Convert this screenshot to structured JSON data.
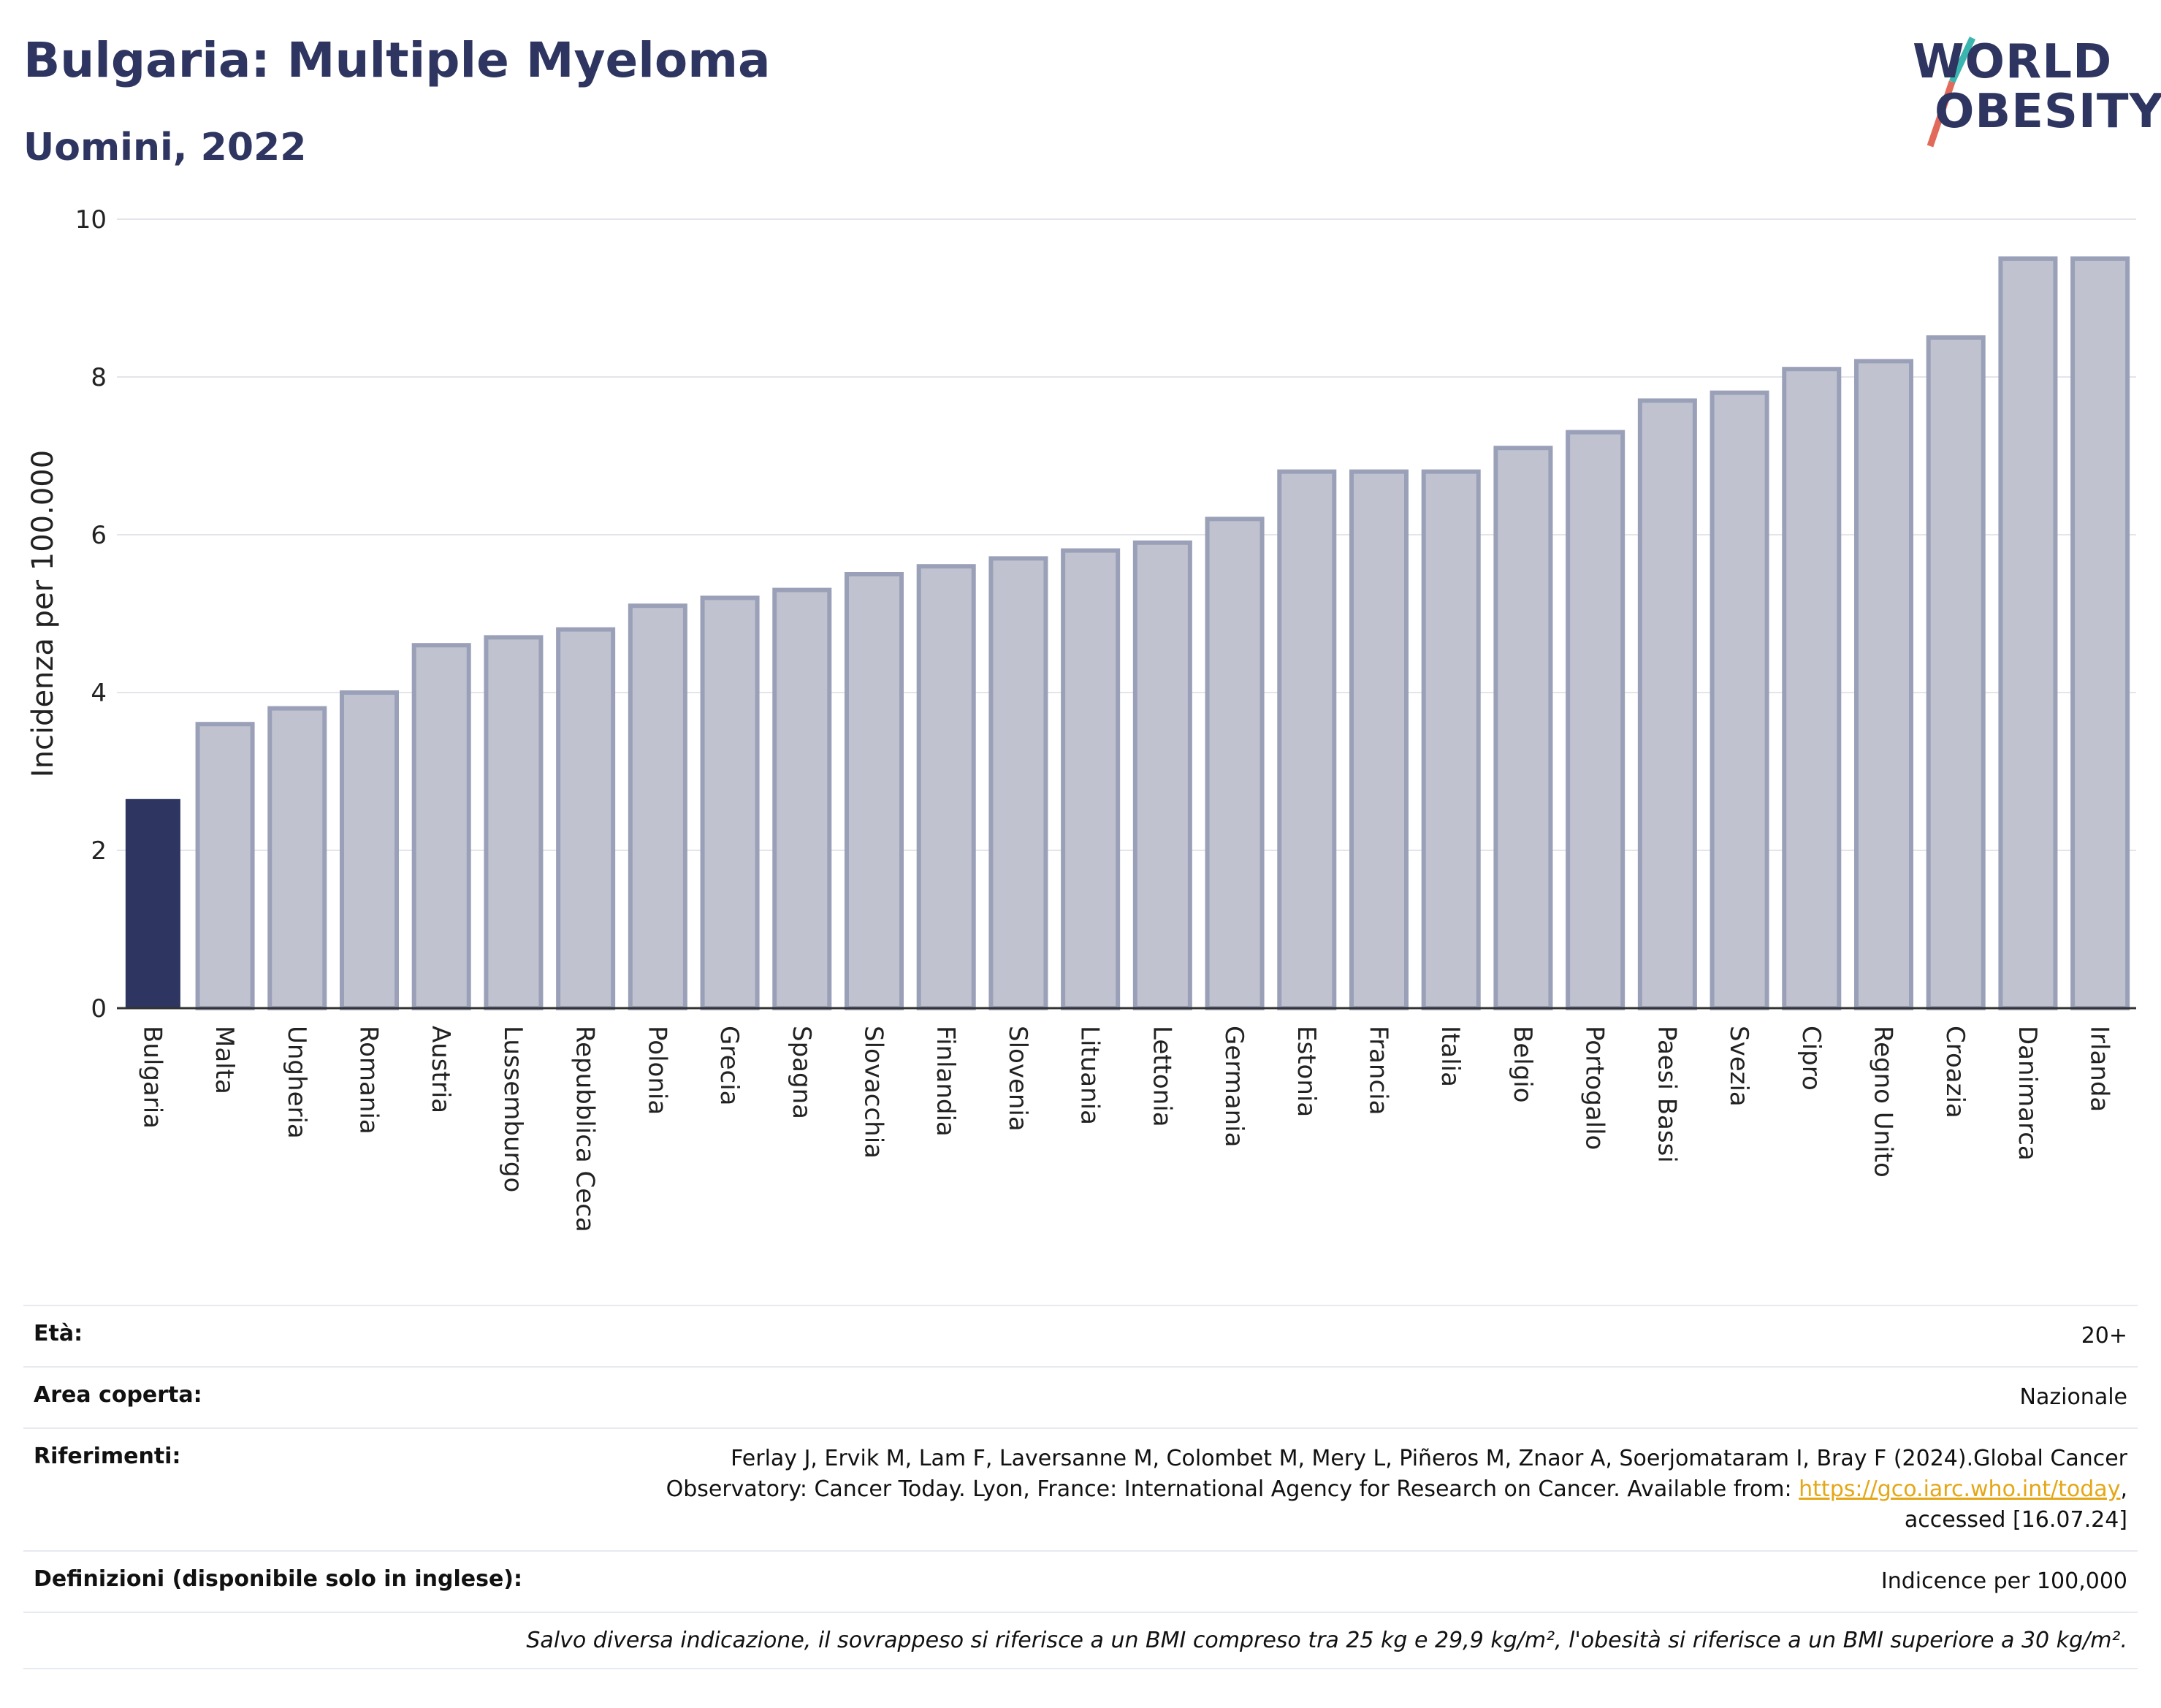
{
  "header": {
    "title": "Bulgaria: Multiple Myeloma",
    "subtitle": "Uomini, 2022"
  },
  "logo": {
    "line1": "WORLD",
    "line2": "OBESITY"
  },
  "colors": {
    "highlight": "#2d3560",
    "bar": "#c0c3cf",
    "bar_border": "#9aa0b8",
    "accent_teal": "#3ab5b0",
    "accent_red": "#e26a5a"
  },
  "chart_data": {
    "type": "bar",
    "ylabel": "Incidenza per 100.000",
    "ylim": [
      0,
      10
    ],
    "yticks": [
      0,
      2,
      4,
      6,
      8,
      10
    ],
    "grid": true,
    "highlight": "Bulgaria",
    "categories": [
      "Bulgaria",
      "Malta",
      "Ungheria",
      "Romania",
      "Austria",
      "Lussemburgo",
      "Repubblica Ceca",
      "Polonia",
      "Grecia",
      "Spagna",
      "Slovacchia",
      "Finlandia",
      "Slovenia",
      "Lituania",
      "Lettonia",
      "Germania",
      "Estonia",
      "Francia",
      "Italia",
      "Belgio",
      "Portogallo",
      "Paesi Bassi",
      "Svezia",
      "Cipro",
      "Regno Unito",
      "Croazia",
      "Danimarca",
      "Irlanda"
    ],
    "values": [
      2.65,
      3.6,
      3.8,
      4.0,
      4.6,
      4.7,
      4.8,
      5.1,
      5.2,
      5.3,
      5.5,
      5.6,
      5.7,
      5.8,
      5.9,
      6.2,
      6.8,
      6.8,
      6.8,
      7.1,
      7.3,
      7.7,
      7.8,
      8.1,
      8.2,
      8.5,
      9.5,
      9.5
    ]
  },
  "meta": {
    "age_label": "Età:",
    "age_value": "20+",
    "area_label": "Area coperta:",
    "area_value": "Nazionale",
    "ref_label": "Riferimenti:",
    "ref_line1": "Ferlay J, Ervik M, Lam F, Laversanne M, Colombet M, Mery L, Piñeros M, Znaor A, Soerjomataram I, Bray F (2024).Global Cancer",
    "ref_line2": "Observatory: Cancer Today. Lyon, France: International Agency for Research on Cancer. Available from: ",
    "ref_link": "https://gco.iarc.who.int/today",
    "ref_line2_end": ",",
    "ref_line3": "accessed [16.07.24]",
    "def_label": "Definizioni (disponibile solo in inglese):",
    "def_value": "Indicence per 100,000",
    "note": "Salvo diversa indicazione, il sovrappeso si riferisce a un BMI compreso tra 25 kg e 29,9 kg/m², l'obesità si riferisce a un BMI superiore a 30 kg/m²."
  }
}
